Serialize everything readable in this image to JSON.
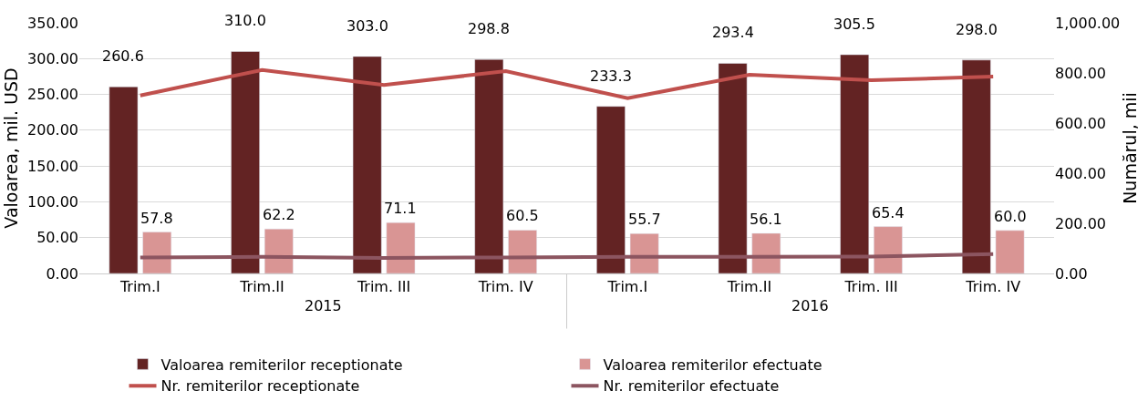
{
  "chart_data": {
    "type": "bar",
    "categories": [
      "Trim.I",
      "Trim.II",
      "Trim. III",
      "Trim. IV",
      "Trim.I",
      "Trim.II",
      "Trim. III",
      "Trim. IV"
    ],
    "series": [
      {
        "name": "Valoarea remiterilor receptionate",
        "color": "#632323",
        "values": [
          260.6,
          310.0,
          303.0,
          298.8,
          233.3,
          293.4,
          305.5,
          298.0
        ],
        "value_labels": [
          "260.6",
          "310.0",
          "303.0",
          "298.8",
          "233.3",
          "293.4",
          "305.5",
          "298.0"
        ]
      },
      {
        "name": "Valoarea remiterilor efectuate",
        "color": "#d99594",
        "values": [
          57.8,
          62.2,
          71.1,
          60.5,
          55.7,
          56.1,
          65.4,
          60.0
        ],
        "value_labels": [
          "57.8",
          "62.2",
          "71.1",
          "60.5",
          "55.7",
          "56.1",
          "65.4",
          "60.0"
        ]
      },
      {
        "name": "Nr. remiterilor receptionate",
        "type": "line",
        "axis": "y2",
        "color": "#c0504d",
        "values": [
          710,
          812,
          752,
          807,
          699,
          793,
          771,
          785
        ]
      },
      {
        "name": "Nr. remiterilor efectuate",
        "type": "line",
        "axis": "y2",
        "color": "#8c5560",
        "values": [
          64,
          66,
          62,
          64,
          66,
          66,
          67,
          77
        ]
      }
    ],
    "annotations": [
      "2015",
      "2016"
    ],
    "ylabel": "Valoarea, mil. USD",
    "y2label": "Numărul, mii",
    "ylim": [
      0,
      350
    ],
    "yticks": [
      {
        "value": 0,
        "label": "0.00"
      },
      {
        "value": 50,
        "label": "50.00"
      },
      {
        "value": 100,
        "label": "100.00"
      },
      {
        "value": 150,
        "label": "150.00"
      },
      {
        "value": 200,
        "label": "200.00"
      },
      {
        "value": 250,
        "label": "250.00"
      },
      {
        "value": 300,
        "label": "300.00"
      },
      {
        "value": 350,
        "label": "350.00"
      }
    ],
    "y2lim": [
      0,
      1000
    ],
    "y2ticks": [
      {
        "value": 0,
        "label": "0.00"
      },
      {
        "value": 200,
        "label": "200.00"
      },
      {
        "value": 400,
        "label": "400.00"
      },
      {
        "value": 600,
        "label": "600.00"
      },
      {
        "value": 800,
        "label": "800.00"
      },
      {
        "value": 1000,
        "label": "1,000.00"
      }
    ],
    "grid": "y",
    "legend": "bottom",
    "marker": "none",
    "line_style": "solid"
  }
}
